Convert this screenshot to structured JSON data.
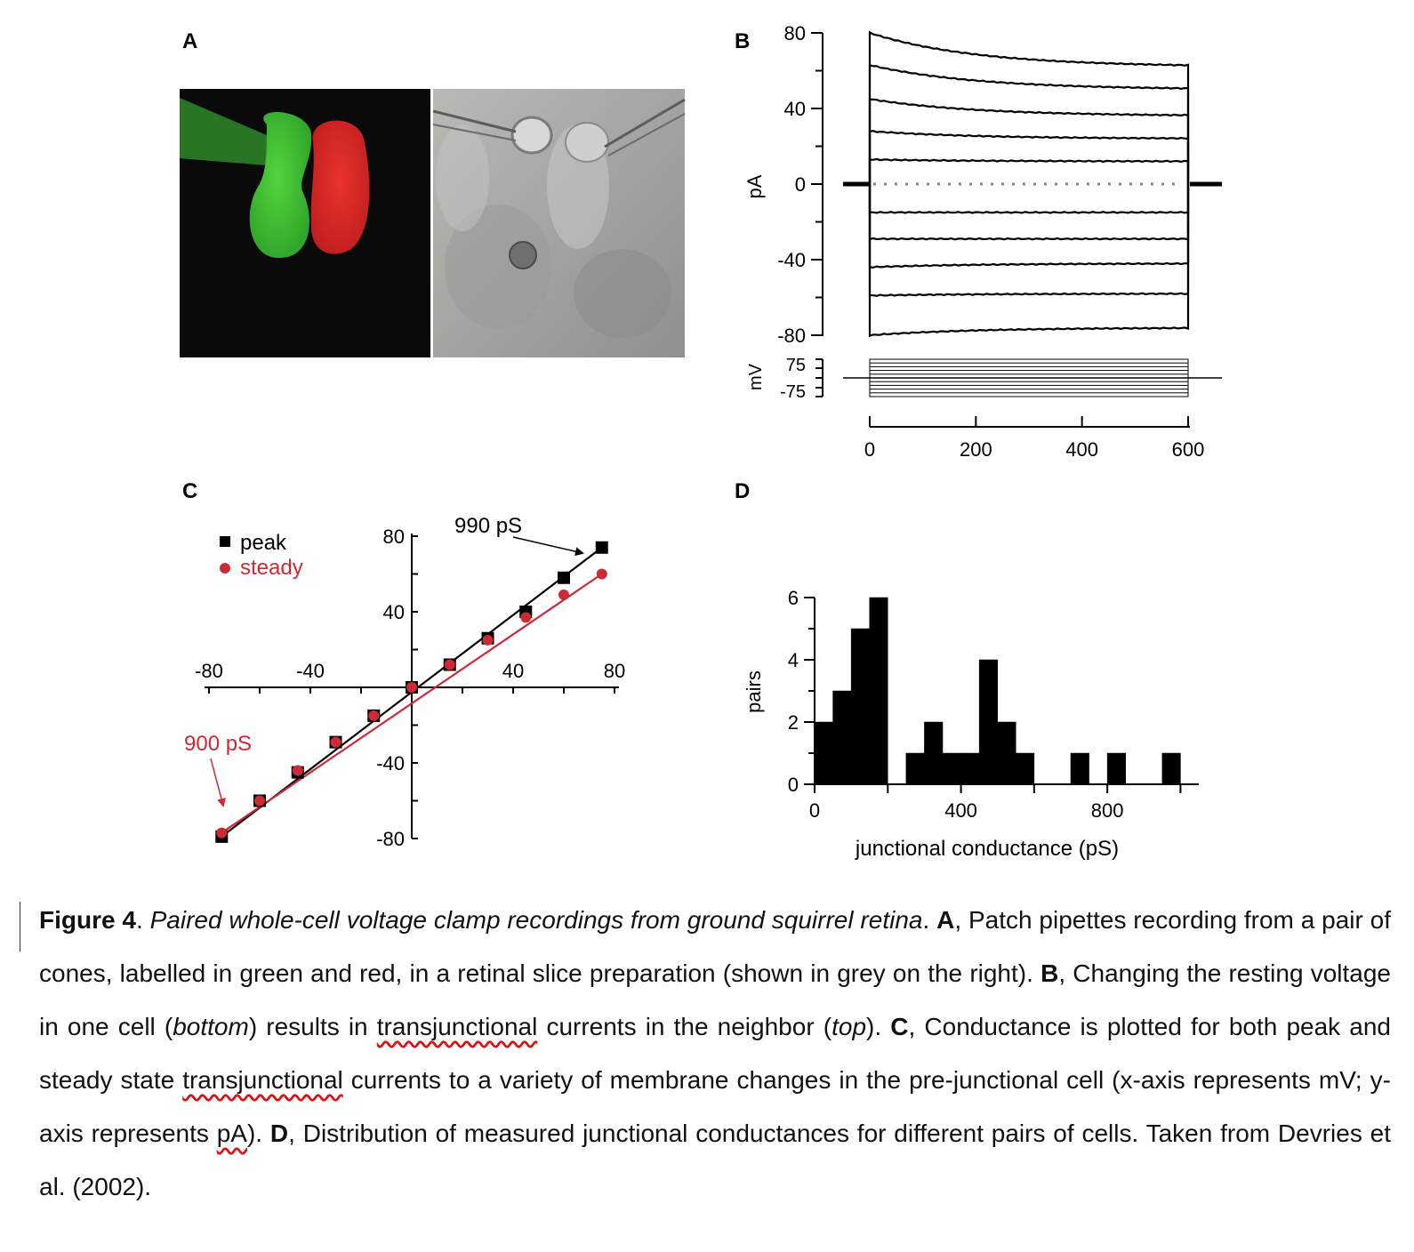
{
  "panels": {
    "a": {
      "letter": "A"
    },
    "b": {
      "letter": "B"
    },
    "c": {
      "letter": "C"
    },
    "d": {
      "letter": "D"
    }
  },
  "chart_data": [
    {
      "id": "B",
      "type": "line",
      "ylabel": "pA",
      "ylim": [
        -80,
        80
      ],
      "yticks": [
        "80",
        "40",
        "0",
        "-40",
        "-80"
      ],
      "xlabel": "",
      "xticks": [
        "0",
        "200",
        "400",
        "600"
      ],
      "xlim": [
        0,
        600
      ],
      "voltage_label": "mV",
      "voltage_ticks": [
        "75",
        "-75"
      ],
      "voltage_steps": [
        -75,
        -60,
        -45,
        -30,
        -15,
        15,
        30,
        45,
        60,
        75
      ],
      "series": [
        {
          "start": 80,
          "end": 62
        },
        {
          "start": 63,
          "end": 50
        },
        {
          "start": 45,
          "end": 36
        },
        {
          "start": 28,
          "end": 24
        },
        {
          "start": 13,
          "end": 12
        },
        {
          "start": -15,
          "end": -15
        },
        {
          "start": -29,
          "end": -29
        },
        {
          "start": -44,
          "end": -42
        },
        {
          "start": -59,
          "end": -58
        },
        {
          "start": -80,
          "end": -76
        }
      ]
    },
    {
      "id": "C",
      "type": "scatter",
      "xlim": [
        -80,
        80
      ],
      "ylim": [
        -80,
        80
      ],
      "xticks": [
        "-80",
        "-40",
        "40",
        "80"
      ],
      "yticks": [
        "80",
        "40",
        "-40",
        "-80"
      ],
      "legend": [
        "peak",
        "steady"
      ],
      "colors": {
        "peak": "#000000",
        "steady": "#cc2b36"
      },
      "series": [
        {
          "name": "peak",
          "x": [
            -75,
            -60,
            -45,
            -30,
            -15,
            0,
            15,
            30,
            45,
            60,
            75
          ],
          "y": [
            -79,
            -60,
            -45,
            -29,
            -15,
            0,
            12,
            26,
            40,
            58,
            74
          ]
        },
        {
          "name": "steady",
          "x": [
            -75,
            -60,
            -45,
            -30,
            -15,
            0,
            15,
            30,
            45,
            60,
            75
          ],
          "y": [
            -77,
            -60,
            -44,
            -29,
            -15,
            0,
            12,
            25,
            37,
            49,
            60
          ]
        }
      ],
      "annotations": [
        "990 pS",
        "900 pS"
      ]
    },
    {
      "id": "D",
      "type": "bar",
      "xlabel": "junctional conductance (pS)",
      "ylabel": "pairs",
      "xlim": [
        0,
        1050
      ],
      "ylim": [
        0,
        6
      ],
      "xticks": [
        "0",
        "400",
        "800"
      ],
      "yticks": [
        "0",
        "2",
        "4",
        "6"
      ],
      "bin_width": 50,
      "bins_start": [
        0,
        50,
        100,
        150,
        200,
        250,
        300,
        350,
        400,
        450,
        500,
        550,
        600,
        650,
        700,
        750,
        800,
        850,
        900,
        950,
        1000
      ],
      "values": [
        2,
        3,
        5,
        6,
        0,
        1,
        2,
        1,
        1,
        4,
        2,
        1,
        0,
        0,
        1,
        0,
        1,
        0,
        0,
        1,
        0
      ]
    }
  ],
  "caption": {
    "fig": "Figure 4",
    "p1": ". ",
    "title": "Paired whole-cell voltage clamp recordings from ground squirrel retina",
    "p2": ". ",
    "a": "A",
    "p3": ", Patch pipettes recording from a pair of cones, labelled in green and red, in a retinal slice preparation (shown in grey on the right). ",
    "b": "B",
    "p4": ", Changing the resting voltage in one cell (",
    "bottom": "bottom",
    "p5": ") results in ",
    "trans1": "transjunctional",
    "p6": " currents in the neighbor (",
    "top": "top",
    "p7": "). ",
    "c": "C",
    "p8": ", Conductance is plotted for both peak and steady state ",
    "trans2": "transjunctional",
    "p9": " currents to a variety of membrane changes in the pre-junctional cell (x-axis represents mV; y-axis represents ",
    "pa": "pA",
    "p10": "). ",
    "d": "D",
    "p11": ", Distribution of measured junctional conductances for different pairs of cells. Taken from Devries et al. (2002)."
  }
}
